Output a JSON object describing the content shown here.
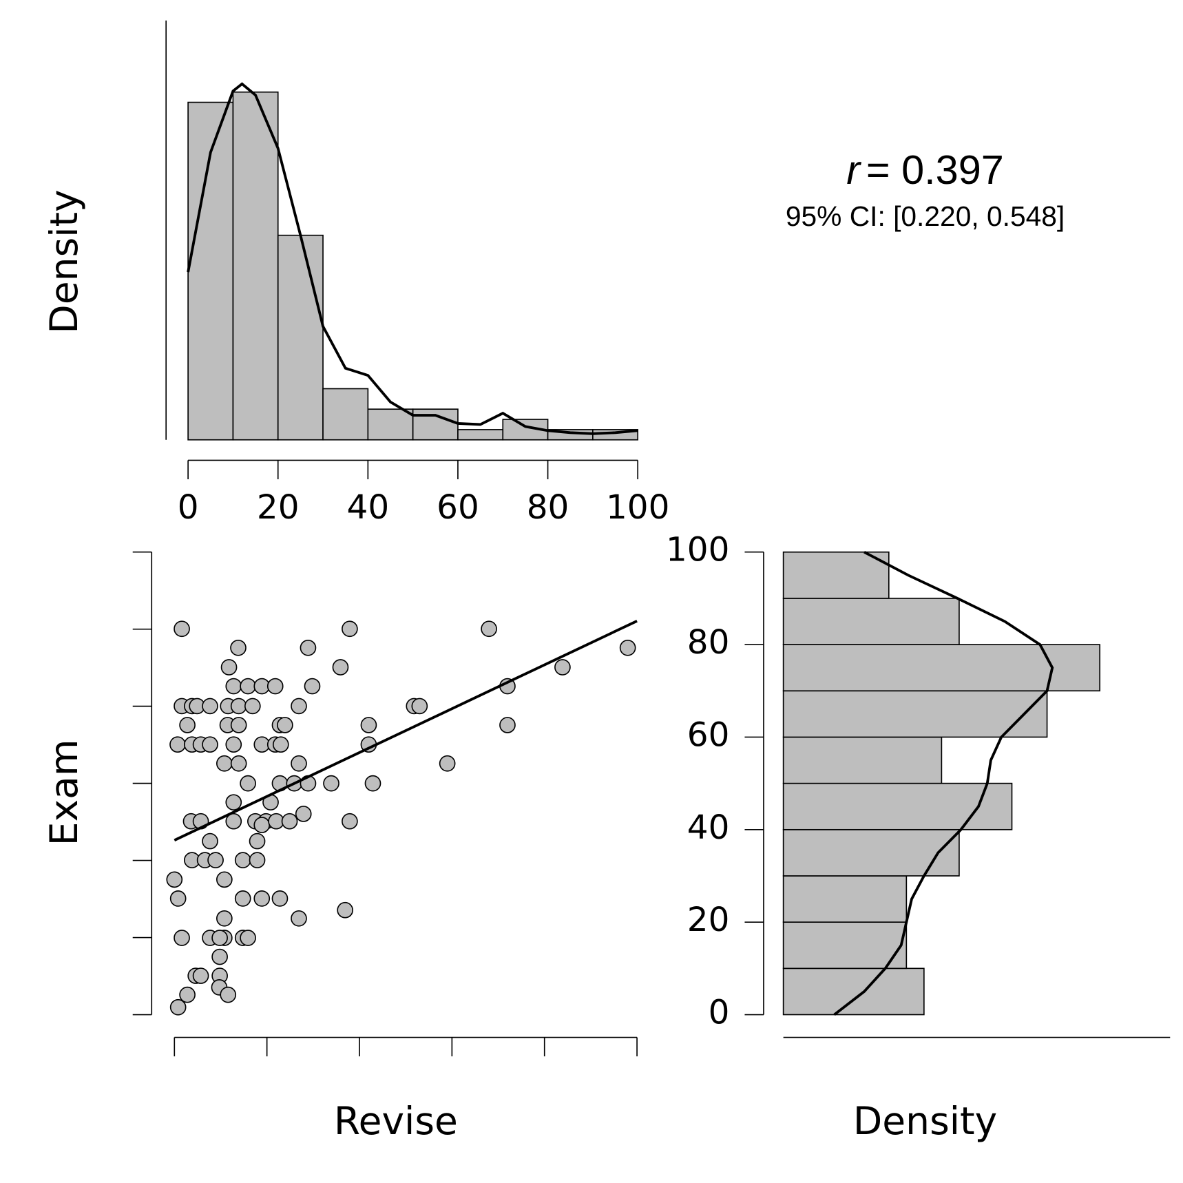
{
  "chart_data": [
    {
      "type": "histogram",
      "orientation": "vertical",
      "ylabel": "Density",
      "color": "#bebebe",
      "bins": [
        0,
        10,
        20,
        30,
        40,
        50,
        60,
        70,
        80,
        90,
        100
      ],
      "counts": [
        33,
        34,
        20,
        5,
        3,
        3,
        1,
        2,
        1,
        1
      ],
      "density_curve": {
        "x": [
          0,
          5,
          10,
          12,
          15,
          20,
          25,
          30,
          35,
          40,
          45,
          50,
          55,
          60,
          65,
          70,
          75,
          80,
          85,
          90,
          95,
          100
        ],
        "y": [
          16.4,
          28.1,
          34.1,
          34.8,
          33.7,
          28.5,
          20,
          11.1,
          7.0,
          6.3,
          3.7,
          2.4,
          2.4,
          1.6,
          1.5,
          2.6,
          1.3,
          0.9,
          0.7,
          0.6,
          0.7,
          0.9
        ]
      },
      "xlim": [
        0,
        100
      ],
      "xticks": [
        0,
        20,
        40,
        60,
        80,
        100
      ],
      "ylim": [
        0,
        41
      ]
    },
    {
      "type": "scatter",
      "xlabel": "Revise",
      "ylabel": "Exam",
      "color": "#bebebe",
      "x": [
        1.6,
        0,
        0.8,
        1.6,
        0.8,
        2.8,
        4.6,
        5.7,
        9.8,
        9.7,
        11.6,
        9.8,
        7.7,
        10.8,
        9.8,
        10.8,
        14.8,
        15.9,
        14.8,
        18.9,
        22.8,
        26.9,
        36.9,
        10.8,
        3.8,
        6.6,
        8.9,
        14.8,
        17.9,
        7.7,
        3.6,
        5.7,
        12.8,
        17.9,
        17.5,
        19.8,
        18.9,
        22.0,
        24.9,
        27.9,
        37.9,
        12.8,
        20.8,
        15.9,
        22.8,
        25.9,
        28.9,
        33.9,
        42.9,
        10.8,
        13.9,
        26.9,
        59.0,
        0.7,
        3.8,
        5.7,
        7.7,
        12.8,
        18.9,
        21.8,
        23.0,
        42.0,
        2.8,
        11.5,
        13.9,
        22.8,
        23.9,
        42.0,
        72.0,
        1.6,
        3.8,
        4.9,
        7.7,
        11.6,
        13.9,
        16.9,
        26.9,
        51.8,
        53.0,
        12.8,
        15.9,
        18.9,
        21.8,
        29.8,
        72.0,
        11.8,
        35.9,
        83.9,
        13.8,
        28.9,
        98.0,
        37.9,
        68.0
      ],
      "y": [
        83.4,
        29.2,
        25.1,
        16.6,
        1.6,
        4.3,
        8.4,
        8.4,
        8.4,
        5.9,
        4.3,
        12.5,
        16.6,
        16.6,
        16.6,
        20.8,
        16.6,
        16.6,
        25.1,
        25.1,
        25.1,
        20.8,
        22.6,
        29.2,
        33.4,
        33.4,
        33.4,
        33.4,
        33.4,
        37.5,
        41.8,
        41.8,
        41.8,
        37.5,
        41.8,
        41.8,
        41.0,
        41.8,
        41.8,
        43.4,
        41.8,
        45.9,
        45.9,
        50,
        50,
        50,
        50,
        50,
        50,
        54.3,
        54.3,
        54.3,
        54.3,
        58.4,
        58.4,
        58.4,
        58.4,
        58.4,
        58.4,
        58.4,
        58.4,
        58.4,
        62.6,
        62.6,
        62.6,
        62.6,
        62.6,
        62.6,
        62.6,
        66.7,
        66.7,
        66.7,
        66.7,
        66.7,
        66.7,
        66.7,
        66.7,
        66.7,
        66.7,
        71.0,
        71.0,
        71.0,
        71.0,
        71.0,
        71.0,
        75.1,
        75.1,
        75.1,
        79.3,
        79.3,
        79.3,
        83.4,
        83.4
      ],
      "fit": {
        "x": [
          0,
          100
        ],
        "y": [
          37.7,
          85.1
        ]
      },
      "xlim": [
        0,
        100
      ],
      "xticks": [
        0,
        20,
        40,
        60,
        80,
        100
      ],
      "ylim": [
        0,
        100
      ],
      "yticks": [
        0,
        16.67,
        33.33,
        50,
        66.67,
        83.33,
        100
      ]
    },
    {
      "type": "histogram",
      "orientation": "horizontal",
      "xlabel": "Density",
      "color": "#bebebe",
      "bins": [
        0,
        10,
        20,
        30,
        40,
        50,
        60,
        70,
        80,
        90,
        100
      ],
      "counts": [
        8,
        7,
        7,
        10,
        13,
        9,
        15,
        18,
        10,
        6
      ],
      "density_curve": {
        "exam": [
          0,
          5,
          10,
          15,
          20,
          25,
          30,
          35,
          40,
          45,
          50,
          55,
          60,
          65,
          70,
          75,
          80,
          85,
          90,
          95,
          100
        ],
        "density": [
          2.9,
          4.6,
          5.8,
          6.7,
          7.0,
          7.3,
          8.0,
          8.8,
          10.1,
          11.1,
          11.6,
          11.8,
          12.4,
          13.7,
          15.0,
          15.3,
          14.6,
          12.6,
          9.9,
          7.1,
          4.6
        ]
      },
      "ylim": [
        0,
        100
      ],
      "yticks": [
        0,
        20,
        40,
        60,
        80,
        100
      ],
      "xlim": [
        0,
        22
      ]
    }
  ],
  "annotation": {
    "symbol": "r",
    "text": "= 0.397",
    "ci": "95% CI: [0.220, 0.548]"
  }
}
